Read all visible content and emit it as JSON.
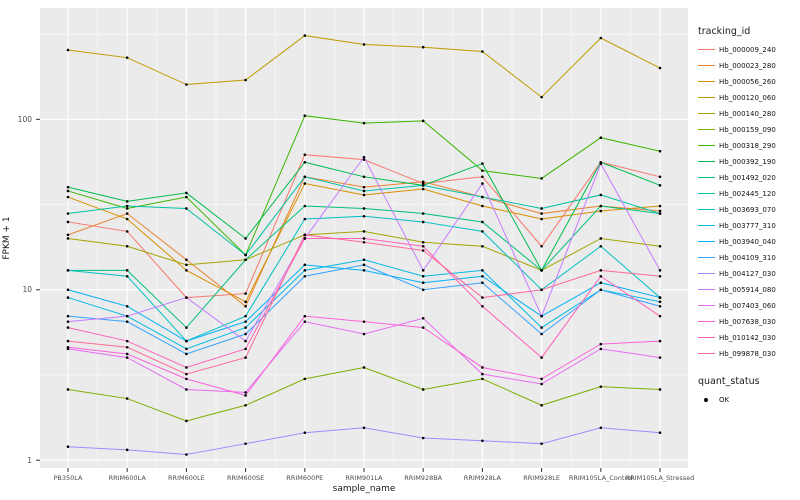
{
  "figure": {
    "ylabel": "FPKM + 1",
    "xlabel": "sample_name",
    "legend_title": "tracking_id",
    "quant_legend_title": "quant_status",
    "quant_ok_label": "OK"
  },
  "chart_data": {
    "type": "line",
    "title": "",
    "xlabel": "sample_name",
    "ylabel": "FPKM + 1",
    "y_scale": "log10",
    "y_ticks": [
      1,
      10,
      100
    ],
    "y_minor_ticks": [
      3.162,
      31.62,
      316.2
    ],
    "ylim": [
      0.9,
      450
    ],
    "grid": true,
    "legend_title": "tracking_id",
    "legend_position": "right",
    "point_color": "#000000",
    "panel_color": "#EBEBEB",
    "quant_status": {
      "title": "quant_status",
      "values": [
        "OK"
      ]
    },
    "categories": [
      "PB350LA",
      "RRIM600LA",
      "RRIM600LE",
      "RRIM600SE",
      "RRIM600PE",
      "RRIM901LA",
      "RRIM928BA",
      "RRIM928LA",
      "RRIM928LE",
      "RRIM105LA_Control",
      "RRIM105LA_Stressed"
    ],
    "series": [
      {
        "name": "Hb_000009_240",
        "color": "#F8766D",
        "values": [
          25,
          22,
          9,
          9.5,
          62,
          58,
          42,
          46,
          18,
          56,
          46
        ]
      },
      {
        "name": "Hb_000023_280",
        "color": "#EA8331",
        "values": [
          21,
          28,
          15,
          8,
          46,
          40,
          43,
          35,
          28,
          31,
          29
        ]
      },
      {
        "name": "Hb_000056_260",
        "color": "#D89000",
        "values": [
          35,
          26,
          13,
          8.5,
          42,
          36,
          39,
          31,
          26,
          29,
          31
        ]
      },
      {
        "name": "Hb_000120_060",
        "color": "#C09B00",
        "values": [
          255,
          230,
          160,
          170,
          310,
          275,
          265,
          250,
          135,
          300,
          200
        ]
      },
      {
        "name": "Hb_000140_280",
        "color": "#A3A500",
        "values": [
          20,
          18,
          14,
          15,
          21,
          22,
          19,
          18,
          13,
          20,
          18
        ]
      },
      {
        "name": "Hb_000159_090",
        "color": "#7CAE00",
        "values": [
          2.6,
          2.3,
          1.7,
          2.1,
          3.0,
          3.5,
          2.6,
          3.0,
          2.1,
          2.7,
          2.6
        ]
      },
      {
        "name": "Hb_000318_290",
        "color": "#39B600",
        "values": [
          38,
          30,
          35,
          16,
          105,
          95,
          98,
          50,
          45,
          78,
          65
        ]
      },
      {
        "name": "Hb_000392_190",
        "color": "#00BB4E",
        "values": [
          40,
          33,
          37,
          20,
          56,
          46,
          41,
          55,
          13,
          56,
          41
        ]
      },
      {
        "name": "Hb_001492_020",
        "color": "#00BF7D",
        "values": [
          13,
          13,
          6,
          15,
          31,
          30,
          28,
          25,
          13,
          31,
          28
        ]
      },
      {
        "name": "Hb_002445_120",
        "color": "#00C1A3",
        "values": [
          28,
          31,
          30,
          16,
          46,
          38,
          41,
          35,
          30,
          36,
          28
        ]
      },
      {
        "name": "Hb_003693_070",
        "color": "#00BFC4",
        "values": [
          13,
          12,
          5,
          7,
          26,
          27,
          25,
          22,
          10,
          18,
          9
        ]
      },
      {
        "name": "Hb_003777_310",
        "color": "#00BAE0",
        "values": [
          9,
          7,
          4.5,
          6,
          13,
          15,
          12,
          13,
          6,
          10,
          8.5
        ]
      },
      {
        "name": "Hb_003940_040",
        "color": "#00B0F6",
        "values": [
          10,
          8,
          5,
          6.5,
          14,
          13,
          11,
          12,
          7,
          11,
          9
        ]
      },
      {
        "name": "Hb_004109_310",
        "color": "#35A2FF",
        "values": [
          7,
          6.5,
          4.2,
          5.5,
          12,
          14,
          10,
          11,
          5.5,
          10,
          8
        ]
      },
      {
        "name": "Hb_004127_030",
        "color": "#9590FF",
        "values": [
          1.2,
          1.15,
          1.08,
          1.25,
          1.45,
          1.55,
          1.35,
          1.3,
          1.25,
          1.55,
          1.45
        ]
      },
      {
        "name": "Hb_005914_080",
        "color": "#C77CFF",
        "values": [
          6.5,
          7,
          9,
          5,
          20,
          60,
          13,
          42,
          7,
          55,
          13
        ]
      },
      {
        "name": "Hb_007403_060",
        "color": "#E76BF3",
        "values": [
          4.5,
          4,
          2.6,
          2.5,
          6.5,
          5.5,
          6.8,
          3.2,
          2.8,
          4.5,
          4
        ]
      },
      {
        "name": "Hb_007638_030",
        "color": "#FA62DB",
        "values": [
          4.6,
          4.2,
          3,
          2.4,
          7,
          6.5,
          6,
          3.5,
          3,
          4.8,
          5
        ]
      },
      {
        "name": "Hb_010142_030",
        "color": "#FF62BC",
        "values": [
          6,
          5,
          3.5,
          4.5,
          20,
          20,
          18,
          8,
          4,
          12,
          7
        ]
      },
      {
        "name": "Hb_099878_030",
        "color": "#FF6A98",
        "values": [
          5,
          4.6,
          3.2,
          4,
          21,
          19,
          17,
          9,
          10,
          13,
          12
        ]
      }
    ]
  }
}
